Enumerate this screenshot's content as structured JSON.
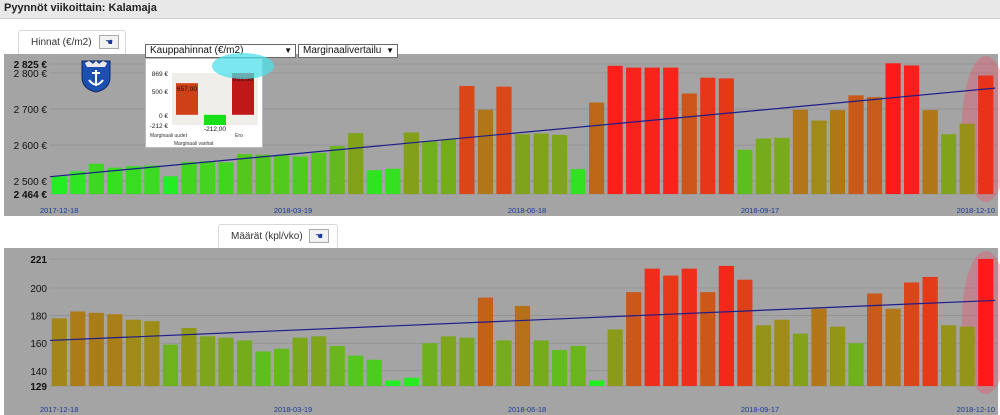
{
  "window": {
    "title": "Pyynnöt viikoittain: Kalamaja"
  },
  "colors": {
    "plot_bg": "#a4a4a4",
    "trend": "#1c1c8c",
    "axis_date": "#1a3a9a",
    "highlight": "#ff4060",
    "popup_bubble": "#4ee0e8"
  },
  "icons": {
    "crest": "coat-of-arms-icon",
    "tab_button": "pointer-hand-icon"
  },
  "tabs": {
    "prices": {
      "label": "Hinnat (€/m2)"
    },
    "counts": {
      "label": "Määrät (kpl/vko)"
    }
  },
  "dropdowns": {
    "price_type": {
      "selected": "Kauppahinnat (€/m2)"
    },
    "comparison": {
      "selected": "Marginaalivertailu"
    }
  },
  "popup_chart": {
    "type": "bar",
    "yticks": [
      "869 €",
      "500 €",
      "0 €",
      "-212 €"
    ],
    "bars": [
      {
        "name": "Marginaali uudet",
        "value": 657,
        "label": "657,00",
        "color": "#d04018"
      },
      {
        "name": "Marginaali vanhat",
        "value": -212,
        "label": "-212,00",
        "color": "#18e018"
      },
      {
        "name": "Ero",
        "value": 869,
        "label": "869,00",
        "color": "#c01818"
      }
    ],
    "ylim": [
      -212,
      869
    ]
  },
  "chart_data": [
    {
      "type": "bar",
      "title": "Hinnat (€/m2)",
      "x_start": "2017-12-18",
      "x_end": "2018-12-10",
      "x_tick_labels": [
        "2017-12-18",
        "2018-03-19",
        "2018-06-18",
        "2018-09-17",
        "2018-12-10"
      ],
      "ylim": [
        2464,
        2825
      ],
      "y_ticks": [
        2825,
        2800,
        2700,
        2600,
        2500,
        2464
      ],
      "y_tick_labels": [
        "2 825 €",
        "2 800 €",
        "2 700 €",
        "2 600 €",
        "2 500 €",
        "2 464 €"
      ],
      "y_tick_bold": [
        true,
        false,
        false,
        false,
        false,
        true
      ],
      "values": [
        2513,
        2527,
        2548,
        2537,
        2541,
        2543,
        2513,
        2553,
        2555,
        2552,
        2575,
        2573,
        2571,
        2568,
        2578,
        2597,
        2633,
        2530,
        2534,
        2635,
        2610,
        2616,
        2764,
        2698,
        2762,
        2630,
        2632,
        2628,
        2533,
        2718,
        2820,
        2815,
        2815,
        2815,
        2743,
        2787,
        2785,
        2587,
        2618,
        2620,
        2698,
        2668,
        2697,
        2738,
        2733,
        2827,
        2821,
        2697,
        2630,
        2659,
        2793
      ],
      "trend": {
        "start": 2512,
        "end": 2758
      },
      "bar_color_scale": {
        "low": "#22ee22",
        "high": "#ff1a1a"
      },
      "highlight_last": true,
      "grid": true
    },
    {
      "type": "bar",
      "title": "Määrät (kpl/vko)",
      "x_start": "2017-12-18",
      "x_end": "2018-12-10",
      "x_tick_labels": [
        "2017-12-18",
        "2018-03-19",
        "2018-06-18",
        "2018-09-17",
        "2018-12-10"
      ],
      "ylim": [
        129,
        221
      ],
      "y_ticks": [
        221,
        200,
        180,
        160,
        140,
        129
      ],
      "y_tick_labels": [
        "221",
        "200",
        "180",
        "160",
        "140",
        "129"
      ],
      "y_tick_bold": [
        true,
        false,
        false,
        false,
        false,
        true
      ],
      "values": [
        178,
        183,
        182,
        181,
        177,
        176,
        159,
        171,
        165,
        164,
        162,
        154,
        156,
        164,
        165,
        158,
        151,
        148,
        133,
        135,
        160,
        165,
        164,
        193,
        162,
        187,
        162,
        155,
        158,
        133,
        170,
        197,
        214,
        209,
        214,
        197,
        216,
        206,
        173,
        177,
        167,
        185,
        172,
        160,
        196,
        185,
        204,
        208,
        173,
        172,
        221
      ],
      "trend": {
        "start": 162,
        "end": 191
      },
      "bar_color_scale": {
        "low": "#22ee22",
        "high": "#ff1a1a"
      },
      "highlight_last": true,
      "grid": true
    }
  ]
}
